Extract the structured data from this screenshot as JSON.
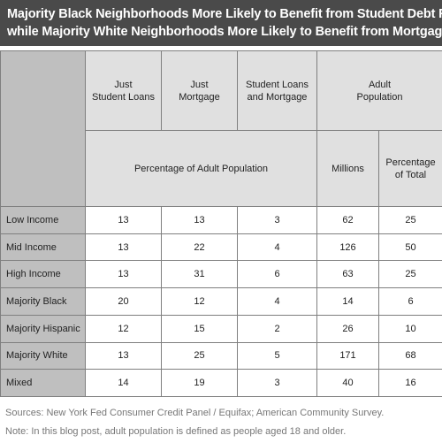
{
  "title": {
    "line1": "Majority Black Neighborhoods More Likely to Benefit from Student Debt Relief",
    "line2": "while Majority White Neighborhoods More Likely to Benefit from Mortgage Relief"
  },
  "table": {
    "header_top": [
      {
        "line1": "Just",
        "line2": "Student Loans"
      },
      {
        "line1": "Just",
        "line2": "Mortgage"
      },
      {
        "line1": "Student Loans",
        "line2": "and Mortgage"
      },
      {
        "line1": "Adult",
        "line2": "Population"
      }
    ],
    "header_sub": {
      "pct_adult": "Percentage of Adult Population",
      "millions": "Millions",
      "pct_total_line1": "Percentage",
      "pct_total_line2": "of Total"
    },
    "rows": [
      {
        "label": "Low Income",
        "values": [
          "13",
          "13",
          "3",
          "62",
          "25"
        ]
      },
      {
        "label": "Mid Income",
        "values": [
          "13",
          "22",
          "4",
          "126",
          "50"
        ]
      },
      {
        "label": "High Income",
        "values": [
          "13",
          "31",
          "6",
          "63",
          "25"
        ]
      },
      {
        "label": "Majority Black",
        "values": [
          "20",
          "12",
          "4",
          "14",
          "6"
        ]
      },
      {
        "label": "Majority Hispanic",
        "values": [
          "12",
          "15",
          "2",
          "26",
          "10"
        ]
      },
      {
        "label": "Majority White",
        "values": [
          "13",
          "25",
          "5",
          "171",
          "68"
        ]
      },
      {
        "label": "Mixed",
        "values": [
          "14",
          "19",
          "3",
          "40",
          "16"
        ]
      }
    ]
  },
  "footer": {
    "sources": "Sources: New York Fed Consumer Credit Panel / Equifax; American Community Survey.",
    "note": "Note: In this blog post, adult population is defined as people aged 18 and older."
  }
}
